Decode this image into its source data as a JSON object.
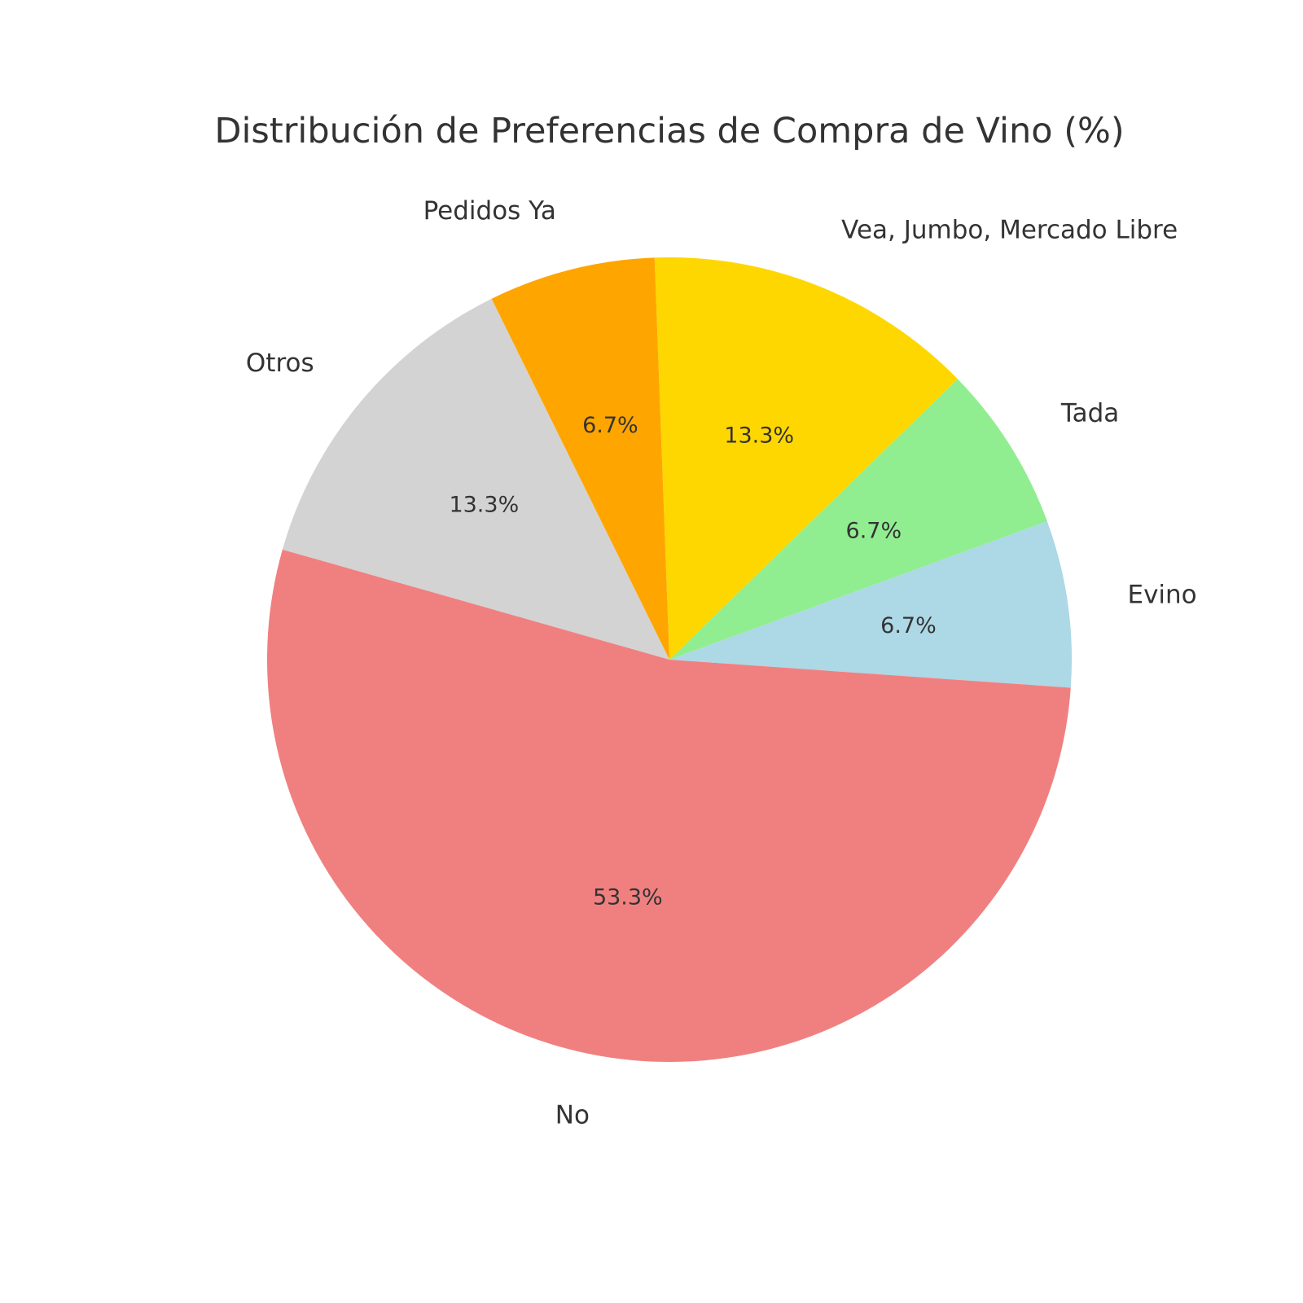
{
  "chart_data": {
    "type": "pie",
    "title": "Distribución de Preferencias de Compra de Vino (%)",
    "slices": [
      {
        "label": "Evino",
        "value": 6.7,
        "pct_label": "6.7%",
        "color": "#add8e6"
      },
      {
        "label": "Tada",
        "value": 6.7,
        "pct_label": "6.7%",
        "color": "#90ee90"
      },
      {
        "label": "Vea, Jumbo, Mercado Libre",
        "value": 13.3,
        "pct_label": "13.3%",
        "color": "#ffd700"
      },
      {
        "label": "Pedidos Ya",
        "value": 6.7,
        "pct_label": "6.7%",
        "color": "#ffa500"
      },
      {
        "label": "Otros",
        "value": 13.3,
        "pct_label": "13.3%",
        "color": "#d3d3d3"
      },
      {
        "label": "No",
        "value": 53.3,
        "pct_label": "53.3%",
        "color": "#f08080"
      }
    ],
    "legend": false
  }
}
